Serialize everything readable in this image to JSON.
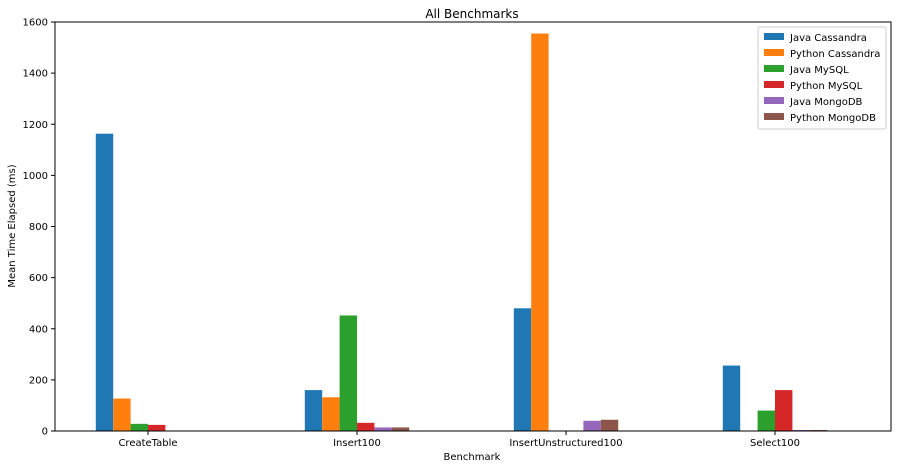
{
  "chart_data": {
    "type": "bar",
    "title": "All Benchmarks",
    "xlabel": "Benchmark",
    "ylabel": "Mean Time Elapsed (ms)",
    "ylim": [
      0,
      1600
    ],
    "yticks": [
      "0",
      "200",
      "400",
      "600",
      "800",
      "1000",
      "1200",
      "1400",
      "1600"
    ],
    "categories": [
      "CreateTable",
      "Insert100",
      "InsertUnstructured100",
      "Select100"
    ],
    "grid": false,
    "legend_position": "top-right",
    "series": [
      {
        "name": "Java Cassandra",
        "color": "#1f77b4",
        "values": [
          1163,
          160,
          480,
          256
        ]
      },
      {
        "name": "Python Cassandra",
        "color": "#ff7f0e",
        "values": [
          127,
          132,
          1555,
          0
        ]
      },
      {
        "name": "Java MySQL",
        "color": "#2ca02c",
        "values": [
          28,
          452,
          0,
          80
        ]
      },
      {
        "name": "Python MySQL",
        "color": "#d62728",
        "values": [
          24,
          32,
          0,
          160
        ]
      },
      {
        "name": "Java MongoDB",
        "color": "#9467bd",
        "values": [
          0,
          14,
          40,
          4
        ]
      },
      {
        "name": "Python MongoDB",
        "color": "#8c564b",
        "values": [
          0,
          14,
          44,
          4
        ]
      }
    ]
  }
}
